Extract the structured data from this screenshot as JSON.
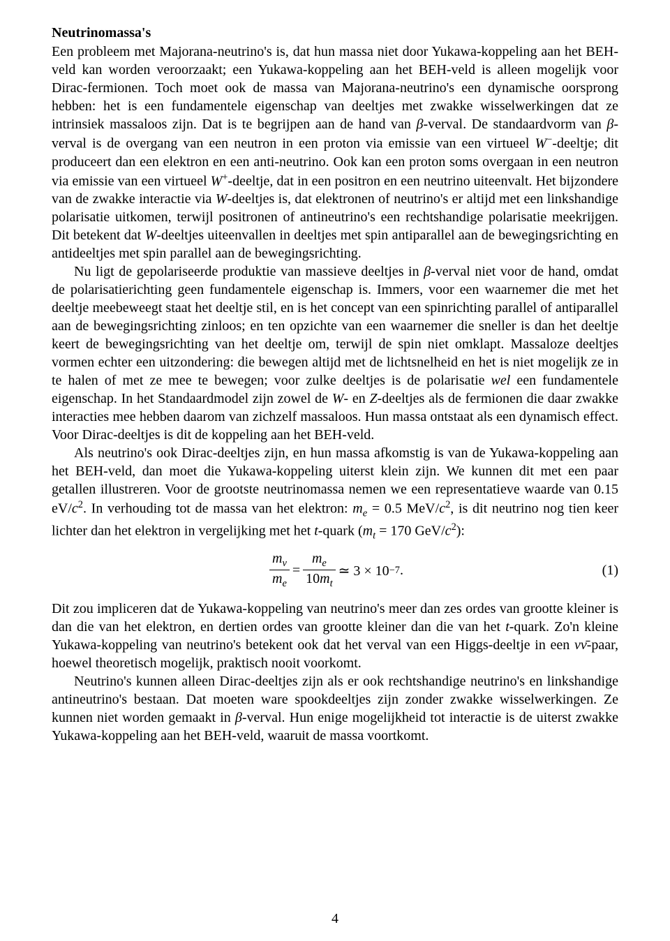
{
  "heading": "Neutrinomassa's",
  "p1_part1": "Een probleem met Majorana-neutrino's is, dat hun massa niet door Yukawa-koppeling aan het BEH-veld kan worden veroorzaakt; een Yukawa-koppeling aan het BEH-veld is alleen mogelijk voor Dirac-fermionen. Toch moet ook de massa van Majorana-neutrino's een dynamische oorsprong hebben: het is een fundamentele eigenschap van deeltjes met zwakke wisselwerkingen dat ze intrinsiek massaloos zijn. Dat is te begrijpen aan de hand van ",
  "p1_beta1": "β",
  "p1_part2": "-verval. De standaardvorm van ",
  "p1_beta2": "β",
  "p1_part3": "-verval is de overgang van een neutron in een proton via emissie van een virtueel ",
  "p1_wminus": "W",
  "p1_minus": "−",
  "p1_part4": "-deeltje; dit produceert dan een elektron en een anti-neutrino. Ook kan een proton soms overgaan in een neutron via emissie van een virtueel ",
  "p1_wplus": "W",
  "p1_plus": "+",
  "p1_part5": "-deeltje, dat in een positron en een neutrino uiteenvalt. Het bijzondere van de zwakke interactie via ",
  "p1_w3": "W",
  "p1_part6": "-deeltjes is, dat elektronen of neutrino's er altijd met een linkshandige polarisatie uitkomen, terwijl positronen of antineutrino's een rechtshandige polarisatie meekrijgen. Dit betekent dat ",
  "p1_w4": "W",
  "p1_part7": "-deeltjes uiteenvallen in deeltjes met spin antiparallel aan de bewegingsrichting en antideeltjes met spin parallel aan de bewegingsrichting.",
  "p2_part1": "Nu ligt de gepolariseerde produktie van massieve deeltjes in ",
  "p2_beta": "β",
  "p2_part2": "-verval niet voor de hand, omdat de polarisatierichting geen fundamentele eigenschap is. Immers, voor een waarnemer die met het deeltje meebeweegt staat het deeltje stil, en is het concept van een spinrichting parallel of antiparallel aan de bewegingsrichting zinloos; en ten opzichte van een waarnemer die sneller is dan het deeltje keert de bewegingsrichting van het deeltje om, terwijl de spin niet omklapt. Massaloze deeltjes vormen echter een uitzondering: die bewegen altijd met de lichtsnelheid en het is niet mogelijk ze in te halen of met ze mee te bewegen; voor zulke deeltjes is de polarisatie ",
  "p2_wel": "wel",
  "p2_part3": " een fundamentele eigenschap. In het Standaardmodel zijn zowel de ",
  "p2_w": "W",
  "p2_part4": "- en ",
  "p2_z": "Z",
  "p2_part5": "-deeltjes als de fermionen die daar zwakke interacties mee hebben daarom van zichzelf massaloos. Hun massa ontstaat als een dynamisch effect. Voor Dirac-deeltjes is dit de koppeling aan het BEH-veld.",
  "p3_part1": "Als neutrino's ook Dirac-deeltjes zijn, en hun massa afkomstig is van de Yukawa-koppeling aan het BEH-veld, dan moet die Yukawa-koppeling uiterst klein zijn. We kunnen dit met een paar getallen illustreren. Voor de grootste neutrinomassa nemen we een representatieve waarde van 0.15 eV/",
  "p3_c2a": "c",
  "p3_sq1": "2",
  "p3_part2": ". In verhouding tot de massa van het elektron: ",
  "p3_me": "m",
  "p3_me_sub": "e",
  "p3_part3": " = 0.5 MeV/",
  "p3_c2b": "c",
  "p3_sq2": "2",
  "p3_part4": ", is dit neutrino nog tien keer lichter dan het elektron in vergelijking met het ",
  "p3_t": "t",
  "p3_part5": "-quark (",
  "p3_mt": "m",
  "p3_mt_sub": "t",
  "p3_part6": " = 170 GeV/",
  "p3_c2c": "c",
  "p3_sq3": "2",
  "p3_part7": "):",
  "eq": {
    "f1_num_m": "m",
    "f1_num_sub": "ν",
    "f1_den_m": "m",
    "f1_den_sub": "e",
    "eq_sign1": " = ",
    "f2_num_m": "m",
    "f2_num_sub": "e",
    "f2_den_10": "10",
    "f2_den_m": "m",
    "f2_den_sub": "t",
    "approx": " ≃ 3 × 10",
    "exp": "−7",
    "period": ".",
    "num": "(1)"
  },
  "p4_part1": "Dit zou impliceren dat de Yukawa-koppeling van neutrino's meer dan zes ordes van grootte kleiner is dan die van het elektron, en dertien ordes van grootte kleiner dan die van het ",
  "p4_t": "t",
  "p4_part2": "-quark. Zo'n kleine Yukawa-koppeling van neutrino's betekent ook dat het verval van een Higgs-deeltje in een ",
  "p4_nunu": "νν̄",
  "p4_part3": "-paar, hoewel theoretisch mogelijk, praktisch nooit voorkomt.",
  "p5_part1": "Neutrino's kunnen alleen Dirac-deeltjes zijn als er ook rechtshandige neutrino's en linkshandige antineutrino's bestaan. Dat moeten ware spookdeeltjes zijn zonder zwakke wisselwerkingen. Ze kunnen niet worden gemaakt in ",
  "p5_beta": "β",
  "p5_part2": "-verval. Hun enige mogelijkheid tot interactie is de uiterst zwakke Yukawa-koppeling aan het BEH-veld, waaruit de massa voortkomt.",
  "pagenum": "4"
}
